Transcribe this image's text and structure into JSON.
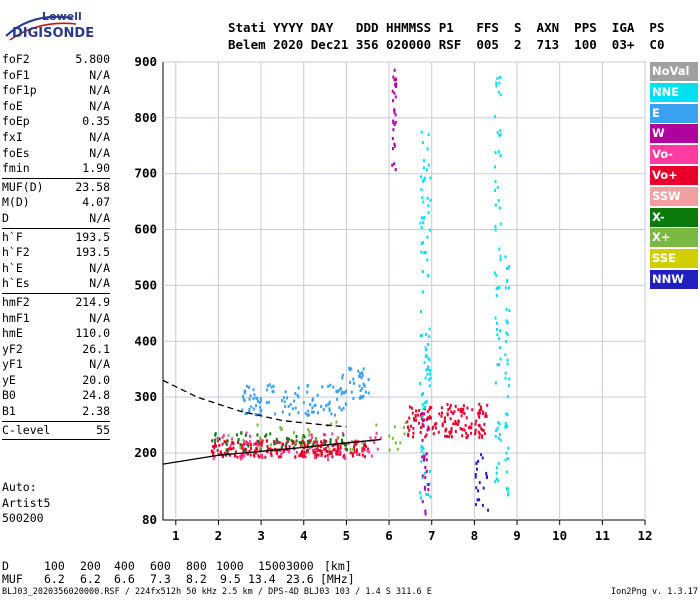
{
  "logo": {
    "top": "Lowell",
    "bottom": "DIGISONDE"
  },
  "header": {
    "line1": "Stati YYYY DAY   DDD HHMMSS P1   FFS  S  AXN  PPS  IGA  PS",
    "line2": "Belem 2020 Dec21 356 020000 RSF  005  2  713  100  03+  C0"
  },
  "params_group1": [
    {
      "name": "foF2",
      "value": "5.800"
    },
    {
      "name": "foF1",
      "value": "N/A"
    },
    {
      "name": "foF1p",
      "value": "N/A"
    },
    {
      "name": "foE",
      "value": "N/A"
    },
    {
      "name": "foEp",
      "value": "0.35"
    },
    {
      "name": "fxI",
      "value": "N/A"
    },
    {
      "name": "foEs",
      "value": "N/A"
    },
    {
      "name": "fmin",
      "value": "1.90"
    }
  ],
  "params_group2": [
    {
      "name": "MUF(D)",
      "value": "23.58"
    },
    {
      "name": "M(D)",
      "value": "4.07"
    },
    {
      "name": "D",
      "value": "N/A"
    }
  ],
  "params_group3": [
    {
      "name": "h`F",
      "value": "193.5"
    },
    {
      "name": "h`F2",
      "value": "193.5"
    },
    {
      "name": "h`E",
      "value": "N/A"
    },
    {
      "name": "h`Es",
      "value": "N/A"
    }
  ],
  "params_group4": [
    {
      "name": "hmF2",
      "value": "214.9"
    },
    {
      "name": "hmF1",
      "value": "N/A"
    },
    {
      "name": "hmE",
      "value": "110.0"
    },
    {
      "name": "yF2",
      "value": "26.1"
    },
    {
      "name": "yF1",
      "value": "N/A"
    },
    {
      "name": "yE",
      "value": "20.0"
    },
    {
      "name": "B0",
      "value": "24.8"
    },
    {
      "name": "B1",
      "value": "2.38"
    }
  ],
  "params_group5": [
    {
      "name": "C-level",
      "value": "55"
    }
  ],
  "auto_lines": [
    "Auto:",
    "Artist5",
    "500200"
  ],
  "legend": [
    {
      "label": "NoVal",
      "color": "#a0a0a0"
    },
    {
      "label": "NNE",
      "color": "#00e0f0"
    },
    {
      "label": "E",
      "color": "#3aa0f0"
    },
    {
      "label": "W",
      "color": "#b000a0"
    },
    {
      "label": "Vo-",
      "color": "#ff3aa0"
    },
    {
      "label": "Vo+",
      "color": "#e8002a"
    },
    {
      "label": "SSW",
      "color": "#f0a0a0"
    },
    {
      "label": "X-",
      "color": "#0a7a0a"
    },
    {
      "label": "X+",
      "color": "#7ab840"
    },
    {
      "label": "SSE",
      "color": "#d0d000"
    },
    {
      "label": "NNW",
      "color": "#2020c0"
    }
  ],
  "muf_table": {
    "d_label": "D",
    "d_values": [
      "100",
      "200",
      "400",
      "600",
      "800",
      "1000",
      "1500",
      "3000",
      "[km]"
    ],
    "muf_label": "MUF",
    "muf_values": [
      "6.2",
      "6.2",
      "6.6",
      "7.3",
      "8.2",
      "9.5",
      "13.4",
      "23.6",
      "[MHz]"
    ]
  },
  "footer": {
    "left": "BLJ03_2020356020000.RSF / 224fx512h 50 kHz 2.5 km / DPS-4D BLJ03 103 / 1.4 S 311.6 E",
    "right": "Ion2Png v. 1.3.17"
  },
  "chart_data": {
    "type": "scatter",
    "title": "",
    "xlabel": "",
    "ylabel": "",
    "xlim": [
      0.7,
      12
    ],
    "ylim": [
      80,
      900
    ],
    "x_ticks": [
      1,
      2,
      3,
      4,
      5,
      6,
      7,
      8,
      9,
      10,
      11,
      12
    ],
    "y_ticks": [
      200,
      300,
      400,
      500,
      600,
      700,
      800,
      900
    ],
    "y_tick_labels": [
      "200",
      "300",
      "400",
      "500",
      "600",
      "700",
      "800",
      "900"
    ],
    "y_extra_tick_label": "80",
    "grid": true,
    "traced_lines": [
      {
        "style": "solid",
        "x": [
          0.7,
          2.0,
          3.0,
          4.0,
          5.0,
          5.8
        ],
        "y": [
          180,
          196,
          203,
          210,
          218,
          224
        ]
      },
      {
        "style": "dashed",
        "x": [
          0.7,
          1.5,
          2.5,
          3.5,
          4.5,
          5.0
        ],
        "y": [
          330,
          300,
          275,
          258,
          250,
          247
        ]
      }
    ],
    "echo_clusters": [
      {
        "category": "Vo+",
        "x": [
          1.8,
          5.5
        ],
        "y": [
          195,
          225
        ],
        "count": 260
      },
      {
        "category": "Vo+",
        "x": [
          6.4,
          8.3
        ],
        "y": [
          230,
          290
        ],
        "count": 150
      },
      {
        "category": "Vo-",
        "x": [
          1.8,
          5.8
        ],
        "y": [
          190,
          240
        ],
        "count": 60
      },
      {
        "category": "X-",
        "x": [
          1.8,
          5.2
        ],
        "y": [
          205,
          240
        ],
        "count": 55
      },
      {
        "category": "X+",
        "x": [
          2.2,
          6.5
        ],
        "y": [
          205,
          260
        ],
        "count": 40
      },
      {
        "category": "E",
        "x": [
          2.5,
          5.0
        ],
        "y": [
          270,
          325
        ],
        "count": 110
      },
      {
        "category": "E",
        "x": [
          4.8,
          5.5
        ],
        "y": [
          300,
          360
        ],
        "count": 35
      },
      {
        "category": "NNE",
        "x": [
          6.7,
          6.95
        ],
        "y": [
          120,
          780
        ],
        "count": 90
      },
      {
        "category": "NNE",
        "x": [
          8.45,
          8.6
        ],
        "y": [
          150,
          900
        ],
        "count": 60
      },
      {
        "category": "NNE",
        "x": [
          8.7,
          8.8
        ],
        "y": [
          120,
          560
        ],
        "count": 40
      },
      {
        "category": "W",
        "x": [
          6.05,
          6.15
        ],
        "y": [
          700,
          900
        ],
        "count": 30
      },
      {
        "category": "W",
        "x": [
          6.75,
          6.9
        ],
        "y": [
          90,
          300
        ],
        "count": 25
      },
      {
        "category": "NNW",
        "x": [
          8.0,
          8.3
        ],
        "y": [
          90,
          200
        ],
        "count": 20
      }
    ]
  }
}
